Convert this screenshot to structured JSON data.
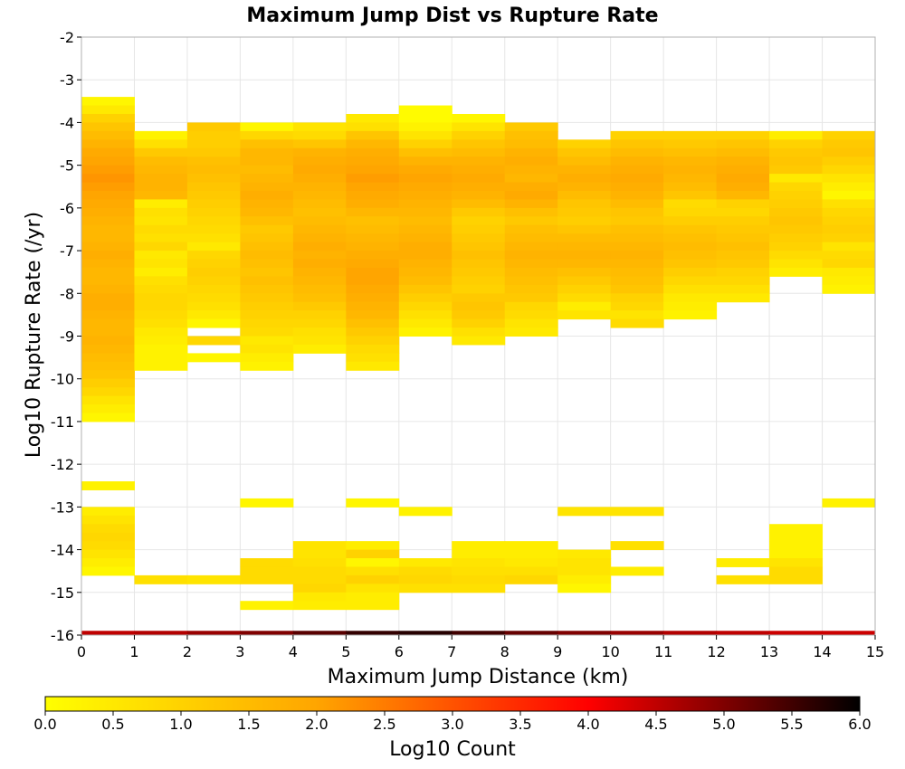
{
  "chart_data": {
    "type": "heatmap",
    "title": "Maximum Jump Dist vs Rupture Rate",
    "xlabel": "Maximum Jump Distance (km)",
    "ylabel": "Log10 Rupture Rate (/yr)",
    "xlim": [
      0,
      15
    ],
    "ylim": [
      -16,
      -2
    ],
    "x_ticks": [
      "0",
      "1",
      "2",
      "3",
      "4",
      "5",
      "6",
      "7",
      "8",
      "9",
      "10",
      "11",
      "12",
      "13",
      "14",
      "15"
    ],
    "y_ticks": [
      "-2",
      "-3",
      "-4",
      "-5",
      "-6",
      "-7",
      "-8",
      "-9",
      "-10",
      "-11",
      "-12",
      "-13",
      "-14",
      "-15",
      "-16"
    ],
    "grid": true,
    "x_bin_width": 1,
    "y_bin_height": 0.2,
    "colorbar": {
      "label": "Log10 Count",
      "range": [
        0,
        6
      ],
      "ticks": [
        "0.0",
        "0.5",
        "1.0",
        "1.5",
        "2.0",
        "2.5",
        "3.0",
        "3.5",
        "4.0",
        "4.5",
        "5.0",
        "5.5",
        "6.0"
      ],
      "colors": [
        "#ffff00",
        "#ffa500",
        "#ff0000",
        "#000000"
      ]
    },
    "columns": [
      {
        "x": 0,
        "start": -3.4,
        "values": [
          0.2,
          0.5,
          1.0,
          1.3,
          1.5,
          1.7,
          1.9,
          2.0,
          2.1,
          2.2,
          2.1,
          2.0,
          1.9,
          1.8,
          1.7,
          1.6,
          1.6,
          1.7,
          1.8,
          1.7,
          1.6,
          1.6,
          1.7,
          1.8,
          1.8,
          1.7,
          1.6,
          1.6,
          1.7,
          1.6,
          1.5,
          1.4,
          1.3,
          1.1,
          0.9,
          0.6,
          0.4,
          0.2,
          null,
          null,
          null,
          null,
          null,
          null,
          null,
          0.3,
          null,
          null,
          0.4,
          0.6,
          0.8,
          0.9,
          0.8,
          0.6,
          0.4,
          0.2
        ]
      },
      {
        "x": 1,
        "start": -4.2,
        "values": [
          0.3,
          0.7,
          1.2,
          1.5,
          1.6,
          1.7,
          1.7,
          1.6,
          0.4,
          0.7,
          0.6,
          0.8,
          0.7,
          0.9,
          0.5,
          0.6,
          0.4,
          0.7,
          0.8,
          0.9,
          0.9,
          0.8,
          0.7,
          0.5,
          0.4,
          0.3,
          0.3,
          0.3
        ]
      },
      {
        "x": 2,
        "start": -4.0,
        "values": [
          1.2,
          1.1,
          1.1,
          1.2,
          1.4,
          1.5,
          1.4,
          1.3,
          1.2,
          1.1,
          1.0,
          0.9,
          0.8,
          0.7,
          0.5,
          0.9,
          1.0,
          1.1,
          1.0,
          0.9,
          0.8,
          0.7,
          0.5,
          0.2,
          null,
          0.9,
          null,
          0.2
        ]
      },
      {
        "x": 3,
        "start": -4.0,
        "values": [
          0.2,
          0.9,
          1.4,
          1.6,
          1.6,
          1.5,
          1.6,
          1.7,
          1.8,
          1.7,
          1.6,
          1.4,
          1.2,
          1.3,
          1.4,
          1.5,
          1.4,
          1.3,
          1.4,
          1.3,
          1.2,
          1.1,
          1.0,
          0.9,
          0.8,
          0.5,
          0.6,
          0.4,
          0.3
        ]
      },
      {
        "x": 4,
        "start": -4.0,
        "values": [
          0.6,
          0.8,
          1.3,
          1.7,
          1.8,
          1.9,
          1.8,
          1.7,
          1.6,
          1.5,
          1.4,
          1.5,
          1.6,
          1.7,
          1.8,
          1.7,
          1.8,
          1.7,
          1.6,
          1.5,
          1.4,
          1.2,
          1.0,
          0.9,
          0.7,
          0.6,
          0.4
        ]
      },
      {
        "x": 5,
        "start": -3.8,
        "values": [
          0.5,
          0.7,
          1.3,
          1.6,
          1.8,
          1.9,
          2.0,
          2.1,
          2.0,
          1.9,
          1.8,
          1.6,
          1.4,
          1.5,
          1.6,
          1.7,
          1.8,
          1.9,
          2.0,
          2.0,
          1.9,
          1.8,
          1.7,
          1.6,
          1.4,
          1.2,
          1.0,
          0.8,
          0.7,
          0.5
        ]
      },
      {
        "x": 6,
        "start": -3.6,
        "values": [
          0.1,
          0.1,
          0.3,
          0.6,
          1.0,
          1.4,
          1.7,
          1.9,
          2.0,
          1.9,
          1.8,
          1.7,
          1.6,
          1.5,
          1.6,
          1.7,
          1.8,
          1.8,
          1.7,
          1.6,
          1.5,
          1.3,
          1.1,
          0.9,
          0.7,
          0.5,
          0.3
        ]
      },
      {
        "x": 7,
        "start": -3.8,
        "values": [
          0.2,
          0.6,
          1.0,
          1.3,
          1.5,
          1.7,
          1.8,
          1.9,
          1.8,
          1.7,
          1.5,
          1.2,
          1.0,
          1.1,
          1.2,
          1.3,
          1.4,
          1.3,
          1.2,
          1.1,
          1.0,
          1.2,
          1.3,
          1.2,
          1.0,
          0.7,
          0.5
        ]
      },
      {
        "x": 8,
        "start": -4.0,
        "values": [
          1.2,
          1.4,
          1.5,
          1.7,
          1.8,
          1.7,
          1.6,
          1.8,
          1.9,
          1.7,
          1.4,
          1.2,
          1.4,
          1.5,
          1.6,
          1.7,
          1.6,
          1.5,
          1.4,
          1.3,
          1.2,
          0.9,
          0.8,
          0.6,
          0.5
        ]
      },
      {
        "x": 9,
        "start": -4.4,
        "values": [
          1.0,
          1.3,
          1.5,
          1.7,
          1.8,
          1.7,
          1.5,
          1.3,
          1.2,
          1.1,
          1.3,
          1.5,
          1.6,
          1.7,
          1.6,
          1.4,
          1.2,
          1.0,
          0.8,
          0.4,
          0.6
        ]
      },
      {
        "x": 10,
        "start": -4.2,
        "values": [
          1.0,
          1.3,
          1.5,
          1.7,
          1.8,
          1.9,
          1.8,
          1.7,
          1.5,
          1.3,
          1.2,
          1.4,
          1.5,
          1.6,
          1.7,
          1.6,
          1.5,
          1.4,
          1.3,
          1.0,
          0.9,
          0.6,
          0.8
        ]
      },
      {
        "x": 11,
        "start": -4.2,
        "values": [
          1.0,
          1.2,
          1.4,
          1.6,
          1.7,
          1.6,
          1.5,
          1.3,
          0.8,
          0.9,
          1.1,
          1.3,
          1.4,
          1.5,
          1.4,
          1.3,
          1.1,
          0.9,
          0.7,
          0.5,
          0.4,
          0.3
        ]
      },
      {
        "x": 12,
        "start": -4.2,
        "values": [
          1.0,
          1.3,
          1.5,
          1.7,
          1.8,
          1.9,
          1.8,
          1.6,
          1.0,
          0.9,
          1.1,
          1.2,
          1.3,
          1.4,
          1.3,
          1.2,
          1.0,
          0.9,
          0.7,
          0.5
        ]
      },
      {
        "x": 13,
        "start": -4.2,
        "values": [
          0.4,
          1.0,
          1.2,
          1.3,
          1.2,
          0.5,
          0.9,
          1.0,
          1.1,
          1.2,
          1.3,
          1.2,
          1.1,
          1.0,
          0.8,
          0.6,
          0.4
        ]
      },
      {
        "x": 14,
        "start": -4.2,
        "values": [
          1.0,
          1.2,
          1.3,
          1.1,
          0.9,
          0.6,
          0.4,
          0.2,
          0.7,
          0.9,
          1.0,
          1.1,
          1.0,
          0.6,
          0.8,
          0.9,
          0.5,
          0.4,
          0.3
        ]
      }
    ],
    "extra_cells": [
      {
        "x": 1,
        "y": -14.6,
        "v": 0.7
      },
      {
        "x": 2,
        "y": -14.6,
        "v": 0.6
      },
      {
        "x": 3,
        "y": -12.8,
        "v": 0.2
      },
      {
        "x": 3,
        "y": -14.2,
        "v": 0.8
      },
      {
        "x": 3,
        "y": -14.4,
        "v": 0.8
      },
      {
        "x": 3,
        "y": -14.6,
        "v": 0.8
      },
      {
        "x": 3,
        "y": -15.2,
        "v": 0.3
      },
      {
        "x": 4,
        "y": -13.8,
        "v": 0.6
      },
      {
        "x": 4,
        "y": -14.0,
        "v": 0.6
      },
      {
        "x": 4,
        "y": -14.2,
        "v": 0.7
      },
      {
        "x": 4,
        "y": -14.4,
        "v": 0.8
      },
      {
        "x": 4,
        "y": -14.6,
        "v": 0.8
      },
      {
        "x": 4,
        "y": -14.8,
        "v": 0.9
      },
      {
        "x": 4,
        "y": -15.0,
        "v": 0.5
      },
      {
        "x": 4,
        "y": -15.2,
        "v": 0.4
      },
      {
        "x": 5,
        "y": -12.8,
        "v": 0.2
      },
      {
        "x": 5,
        "y": -13.8,
        "v": 0.4
      },
      {
        "x": 5,
        "y": -14.0,
        "v": 1.0
      },
      {
        "x": 5,
        "y": -14.2,
        "v": 0.2
      },
      {
        "x": 5,
        "y": -14.4,
        "v": 0.7
      },
      {
        "x": 5,
        "y": -14.6,
        "v": 1.0
      },
      {
        "x": 5,
        "y": -14.8,
        "v": 0.6
      },
      {
        "x": 5,
        "y": -15.0,
        "v": 0.4
      },
      {
        "x": 5,
        "y": -15.2,
        "v": 0.4
      },
      {
        "x": 6,
        "y": -13.0,
        "v": 0.3
      },
      {
        "x": 6,
        "y": -14.2,
        "v": 0.5
      },
      {
        "x": 6,
        "y": -14.4,
        "v": 0.8
      },
      {
        "x": 6,
        "y": -14.6,
        "v": 0.9
      },
      {
        "x": 6,
        "y": -14.8,
        "v": 0.7
      },
      {
        "x": 7,
        "y": -13.8,
        "v": 0.4
      },
      {
        "x": 7,
        "y": -14.0,
        "v": 0.4
      },
      {
        "x": 7,
        "y": -14.2,
        "v": 0.6
      },
      {
        "x": 7,
        "y": -14.4,
        "v": 0.7
      },
      {
        "x": 7,
        "y": -14.6,
        "v": 0.8
      },
      {
        "x": 7,
        "y": -14.8,
        "v": 0.7
      },
      {
        "x": 8,
        "y": -13.8,
        "v": 0.4
      },
      {
        "x": 8,
        "y": -14.0,
        "v": 0.4
      },
      {
        "x": 8,
        "y": -14.2,
        "v": 0.5
      },
      {
        "x": 8,
        "y": -14.4,
        "v": 0.7
      },
      {
        "x": 8,
        "y": -14.6,
        "v": 0.9
      },
      {
        "x": 9,
        "y": -13.0,
        "v": 0.6
      },
      {
        "x": 9,
        "y": -14.0,
        "v": 0.5
      },
      {
        "x": 9,
        "y": -14.2,
        "v": 0.6
      },
      {
        "x": 9,
        "y": -14.4,
        "v": 0.6
      },
      {
        "x": 9,
        "y": -14.6,
        "v": 0.4
      },
      {
        "x": 9,
        "y": -14.8,
        "v": 0.2
      },
      {
        "x": 10,
        "y": -13.0,
        "v": 0.6
      },
      {
        "x": 10,
        "y": -13.8,
        "v": 0.7
      },
      {
        "x": 10,
        "y": -14.4,
        "v": 0.4
      },
      {
        "x": 12,
        "y": -14.2,
        "v": 0.4
      },
      {
        "x": 12,
        "y": -14.6,
        "v": 0.7
      },
      {
        "x": 13,
        "y": -13.4,
        "v": 0.3
      },
      {
        "x": 13,
        "y": -13.6,
        "v": 0.3
      },
      {
        "x": 13,
        "y": -13.8,
        "v": 0.3
      },
      {
        "x": 13,
        "y": -14.0,
        "v": 0.3
      },
      {
        "x": 13,
        "y": -14.2,
        "v": 0.6
      },
      {
        "x": 13,
        "y": -14.4,
        "v": 0.8
      },
      {
        "x": 13,
        "y": -14.6,
        "v": 0.8
      },
      {
        "x": 14,
        "y": -12.8,
        "v": 0.3
      }
    ],
    "bottom_band": {
      "y": -16,
      "values": [
        4.5,
        4.6,
        4.8,
        5.0,
        5.3,
        5.6,
        5.7,
        5.5,
        5.2,
        5.0,
        4.8,
        4.6,
        4.5,
        4.4,
        4.4
      ]
    }
  }
}
